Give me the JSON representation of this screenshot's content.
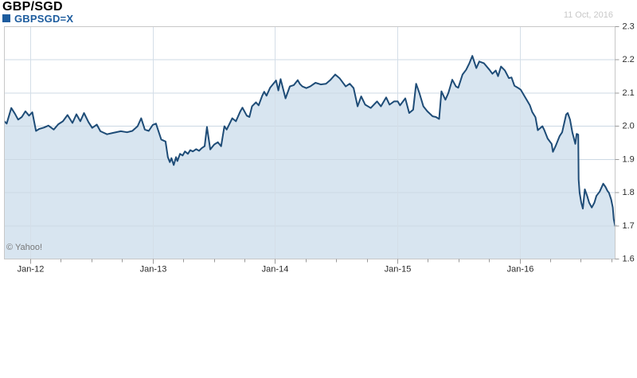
{
  "header": {
    "title": "GBP/SGD",
    "legend": {
      "symbol_label": "GBPSGD=X",
      "swatch_color": "#1d5c9e"
    },
    "date": "11 Oct, 2016"
  },
  "watermark": "© Yahoo!",
  "colors": {
    "line": "#1e4c77",
    "fill": "#d8e5f0",
    "grid": "#ccd9e4",
    "grid_vertical": "#d4dee8",
    "border": "#c8c8c8",
    "tick": "#999999",
    "axis_label": "#2b2b2b",
    "date_text": "#c8c8c8",
    "watermark_text": "#777777"
  },
  "chart_data": {
    "type": "area",
    "grid": true,
    "legend_position": "top-left",
    "x_range": [
      "2011-10-14",
      "2016-10-11"
    ],
    "ylim": [
      1.6,
      2.3
    ],
    "y_ticks": [
      {
        "label": "2.3",
        "value": 2.3
      },
      {
        "label": "2.2",
        "value": 2.2
      },
      {
        "label": "2.1",
        "value": 2.1
      },
      {
        "label": "2.0",
        "value": 2.0
      },
      {
        "label": "1.9",
        "value": 1.9
      },
      {
        "label": "1.8",
        "value": 1.8
      },
      {
        "label": "1.7",
        "value": 1.7
      },
      {
        "label": "1.6",
        "value": 1.6
      }
    ],
    "x_ticks": [
      {
        "label": "Jan-12",
        "date": "2012-01-01"
      },
      {
        "label": "Jan-13",
        "date": "2013-01-01"
      },
      {
        "label": "Jan-14",
        "date": "2014-01-01"
      },
      {
        "label": "Jan-15",
        "date": "2015-01-01"
      },
      {
        "label": "Jan-16",
        "date": "2016-01-01"
      }
    ],
    "x_minor_ticks": [
      "2012-04-01",
      "2012-07-01",
      "2012-10-01",
      "2013-04-01",
      "2013-07-01",
      "2013-10-01",
      "2014-04-01",
      "2014-07-01",
      "2014-10-01",
      "2015-04-01",
      "2015-07-01",
      "2015-10-01",
      "2016-04-01",
      "2016-07-01",
      "2016-10-01"
    ],
    "series": [
      {
        "name": "GBPSGD=X",
        "points": [
          [
            "2011-10-14",
            2.015
          ],
          [
            "2011-10-21",
            2.008
          ],
          [
            "2011-11-04",
            2.055
          ],
          [
            "2011-11-15",
            2.038
          ],
          [
            "2011-11-25",
            2.02
          ],
          [
            "2011-12-05",
            2.028
          ],
          [
            "2011-12-16",
            2.045
          ],
          [
            "2011-12-27",
            2.032
          ],
          [
            "2012-01-06",
            2.042
          ],
          [
            "2012-01-17",
            1.986
          ],
          [
            "2012-01-27",
            1.992
          ],
          [
            "2012-02-10",
            1.996
          ],
          [
            "2012-02-24",
            2.002
          ],
          [
            "2012-03-09",
            1.99
          ],
          [
            "2012-03-23",
            2.006
          ],
          [
            "2012-04-06",
            2.015
          ],
          [
            "2012-04-20",
            2.034
          ],
          [
            "2012-05-04",
            2.01
          ],
          [
            "2012-05-16",
            2.036
          ],
          [
            "2012-05-28",
            2.015
          ],
          [
            "2012-06-08",
            2.04
          ],
          [
            "2012-06-22",
            2.012
          ],
          [
            "2012-07-02",
            1.995
          ],
          [
            "2012-07-16",
            2.005
          ],
          [
            "2012-07-27",
            1.985
          ],
          [
            "2012-08-16",
            1.976
          ],
          [
            "2012-09-03",
            1.98
          ],
          [
            "2012-09-27",
            1.985
          ],
          [
            "2012-10-15",
            1.982
          ],
          [
            "2012-10-31",
            1.986
          ],
          [
            "2012-11-16",
            2.0
          ],
          [
            "2012-11-27",
            2.024
          ],
          [
            "2012-12-07",
            1.99
          ],
          [
            "2012-12-19",
            1.986
          ],
          [
            "2012-12-31",
            2.004
          ],
          [
            "2013-01-10",
            2.008
          ],
          [
            "2013-01-26",
            1.96
          ],
          [
            "2013-02-08",
            1.954
          ],
          [
            "2013-02-15",
            1.907
          ],
          [
            "2013-02-21",
            1.892
          ],
          [
            "2013-02-26",
            1.904
          ],
          [
            "2013-03-02",
            1.883
          ],
          [
            "2013-03-09",
            1.907
          ],
          [
            "2013-03-13",
            1.895
          ],
          [
            "2013-03-21",
            1.917
          ],
          [
            "2013-03-29",
            1.912
          ],
          [
            "2013-04-05",
            1.924
          ],
          [
            "2013-04-14",
            1.917
          ],
          [
            "2013-04-21",
            1.928
          ],
          [
            "2013-04-29",
            1.924
          ],
          [
            "2013-05-08",
            1.931
          ],
          [
            "2013-05-17",
            1.926
          ],
          [
            "2013-05-25",
            1.934
          ],
          [
            "2013-06-03",
            1.94
          ],
          [
            "2013-06-10",
            1.998
          ],
          [
            "2013-06-20",
            1.93
          ],
          [
            "2013-07-01",
            1.945
          ],
          [
            "2013-07-12",
            1.952
          ],
          [
            "2013-07-22",
            1.94
          ],
          [
            "2013-08-01",
            2.0
          ],
          [
            "2013-08-08",
            1.99
          ],
          [
            "2013-08-25",
            2.024
          ],
          [
            "2013-09-05",
            2.015
          ],
          [
            "2013-09-18",
            2.044
          ],
          [
            "2013-09-25",
            2.056
          ],
          [
            "2013-10-07",
            2.032
          ],
          [
            "2013-10-15",
            2.028
          ],
          [
            "2013-10-23",
            2.06
          ],
          [
            "2013-11-04",
            2.072
          ],
          [
            "2013-11-12",
            2.063
          ],
          [
            "2013-11-23",
            2.092
          ],
          [
            "2013-11-29",
            2.104
          ],
          [
            "2013-12-05",
            2.092
          ],
          [
            "2013-12-16",
            2.116
          ],
          [
            "2014-01-03",
            2.138
          ],
          [
            "2014-01-10",
            2.108
          ],
          [
            "2014-01-17",
            2.142
          ],
          [
            "2014-02-01",
            2.084
          ],
          [
            "2014-02-14",
            2.12
          ],
          [
            "2014-02-26",
            2.124
          ],
          [
            "2014-03-07",
            2.139
          ],
          [
            "2014-03-14",
            2.127
          ],
          [
            "2014-03-21",
            2.12
          ],
          [
            "2014-04-02",
            2.115
          ],
          [
            "2014-04-14",
            2.12
          ],
          [
            "2014-04-30",
            2.131
          ],
          [
            "2014-05-15",
            2.126
          ],
          [
            "2014-05-31",
            2.128
          ],
          [
            "2014-06-14",
            2.14
          ],
          [
            "2014-06-28",
            2.156
          ],
          [
            "2014-07-10",
            2.145
          ],
          [
            "2014-07-29",
            2.12
          ],
          [
            "2014-08-10",
            2.128
          ],
          [
            "2014-08-22",
            2.115
          ],
          [
            "2014-09-03",
            2.06
          ],
          [
            "2014-09-14",
            2.09
          ],
          [
            "2014-09-26",
            2.065
          ],
          [
            "2014-10-12",
            2.055
          ],
          [
            "2014-10-31",
            2.075
          ],
          [
            "2014-11-12",
            2.06
          ],
          [
            "2014-11-28",
            2.087
          ],
          [
            "2014-12-07",
            2.065
          ],
          [
            "2014-12-21",
            2.075
          ],
          [
            "2015-01-01",
            2.075
          ],
          [
            "2015-01-08",
            2.063
          ],
          [
            "2015-01-24",
            2.084
          ],
          [
            "2015-02-05",
            2.04
          ],
          [
            "2015-02-17",
            2.05
          ],
          [
            "2015-02-26",
            2.128
          ],
          [
            "2015-03-05",
            2.1
          ],
          [
            "2015-03-17",
            2.06
          ],
          [
            "2015-03-29",
            2.045
          ],
          [
            "2015-04-14",
            2.03
          ],
          [
            "2015-04-24",
            2.028
          ],
          [
            "2015-05-03",
            2.022
          ],
          [
            "2015-05-10",
            2.105
          ],
          [
            "2015-05-22",
            2.08
          ],
          [
            "2015-05-31",
            2.1
          ],
          [
            "2015-06-12",
            2.14
          ],
          [
            "2015-06-23",
            2.12
          ],
          [
            "2015-06-30",
            2.116
          ],
          [
            "2015-07-12",
            2.156
          ],
          [
            "2015-07-23",
            2.17
          ],
          [
            "2015-08-02",
            2.19
          ],
          [
            "2015-08-11",
            2.212
          ],
          [
            "2015-08-23",
            2.175
          ],
          [
            "2015-09-01",
            2.195
          ],
          [
            "2015-09-15",
            2.19
          ],
          [
            "2015-10-01",
            2.17
          ],
          [
            "2015-10-10",
            2.158
          ],
          [
            "2015-10-20",
            2.168
          ],
          [
            "2015-10-27",
            2.151
          ],
          [
            "2015-11-05",
            2.18
          ],
          [
            "2015-11-17",
            2.168
          ],
          [
            "2015-11-29",
            2.145
          ],
          [
            "2015-12-06",
            2.147
          ],
          [
            "2015-12-15",
            2.122
          ],
          [
            "2015-12-27",
            2.115
          ],
          [
            "2016-01-03",
            2.11
          ],
          [
            "2016-01-15",
            2.09
          ],
          [
            "2016-01-24",
            2.075
          ],
          [
            "2016-01-31",
            2.063
          ],
          [
            "2016-02-07",
            2.043
          ],
          [
            "2016-02-17",
            2.027
          ],
          [
            "2016-02-24",
            1.988
          ],
          [
            "2016-03-07",
            2.0
          ],
          [
            "2016-03-12",
            1.99
          ],
          [
            "2016-03-23",
            1.963
          ],
          [
            "2016-04-04",
            1.947
          ],
          [
            "2016-04-08",
            1.923
          ],
          [
            "2016-04-16",
            1.94
          ],
          [
            "2016-04-28",
            1.97
          ],
          [
            "2016-05-05",
            1.982
          ],
          [
            "2016-05-17",
            2.035
          ],
          [
            "2016-05-22",
            2.04
          ],
          [
            "2016-05-29",
            2.02
          ],
          [
            "2016-06-05",
            1.982
          ],
          [
            "2016-06-14",
            1.947
          ],
          [
            "2016-06-18",
            1.977
          ],
          [
            "2016-06-23",
            1.975
          ],
          [
            "2016-06-24",
            1.84
          ],
          [
            "2016-06-27",
            1.8
          ],
          [
            "2016-07-01",
            1.77
          ],
          [
            "2016-07-06",
            1.752
          ],
          [
            "2016-07-12",
            1.81
          ],
          [
            "2016-07-19",
            1.79
          ],
          [
            "2016-07-25",
            1.77
          ],
          [
            "2016-08-02",
            1.755
          ],
          [
            "2016-08-10",
            1.77
          ],
          [
            "2016-08-16",
            1.79
          ],
          [
            "2016-08-26",
            1.803
          ],
          [
            "2016-09-06",
            1.827
          ],
          [
            "2016-09-13",
            1.817
          ],
          [
            "2016-09-19",
            1.805
          ],
          [
            "2016-09-23",
            1.8
          ],
          [
            "2016-09-30",
            1.78
          ],
          [
            "2016-10-04",
            1.755
          ],
          [
            "2016-10-07",
            1.72
          ],
          [
            "2016-10-11",
            1.7
          ]
        ]
      }
    ]
  }
}
